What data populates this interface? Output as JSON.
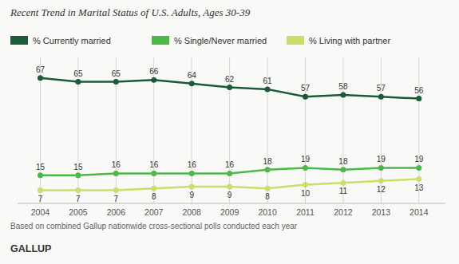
{
  "chart_data": {
    "type": "line",
    "title": "Recent Trend in Marital Status of U.S. Adults, Ages 30-39",
    "x": [
      2004,
      2005,
      2006,
      2007,
      2008,
      2009,
      2010,
      2011,
      2012,
      2013,
      2014
    ],
    "series": [
      {
        "name": "% Currently married",
        "color": "#1a5c38",
        "marker": "circle",
        "values": [
          67,
          65,
          65,
          66,
          64,
          62,
          61,
          57,
          58,
          57,
          56
        ]
      },
      {
        "name": "% Single/Never married",
        "color": "#4cb847",
        "marker": "circle",
        "values": [
          15,
          15,
          16,
          16,
          16,
          16,
          18,
          19,
          18,
          19,
          19
        ]
      },
      {
        "name": "% Living with partner",
        "color": "#c8e06a",
        "marker": "circle",
        "values": [
          7,
          7,
          7,
          8,
          9,
          9,
          8,
          10,
          11,
          12,
          13
        ]
      }
    ],
    "xlim": [
      2003.4,
      2014.7
    ],
    "xticks": [
      2004,
      2005,
      2006,
      2007,
      2008,
      2009,
      2010,
      2011,
      2012,
      2013,
      2014
    ],
    "ylim": [
      0,
      78
    ],
    "tick_labels": "x",
    "grid": "x",
    "legend": "top",
    "data_labels": true,
    "annotations": [
      "Based on combined Gallup nationwide cross-sectional polls conducted each year",
      "GALLUP"
    ]
  }
}
